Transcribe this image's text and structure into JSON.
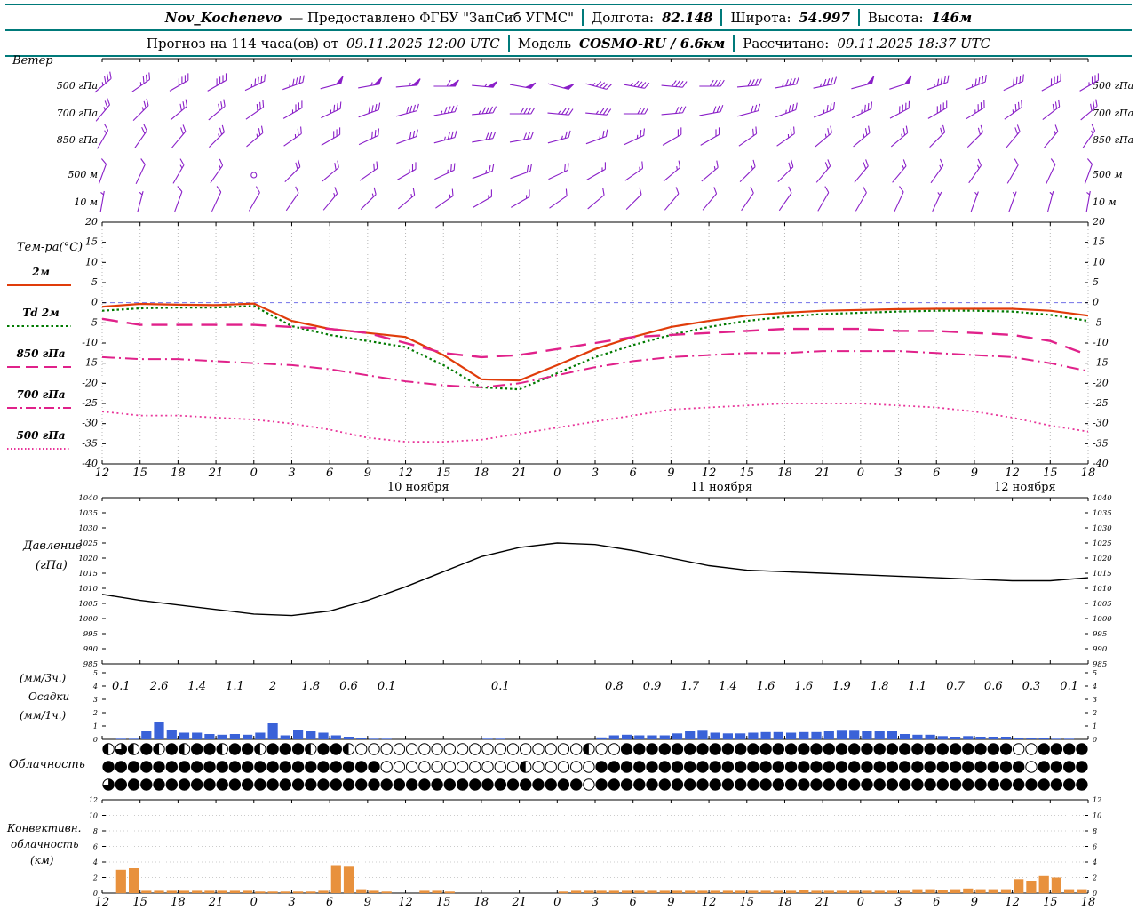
{
  "colors": {
    "accent": "#007a7a",
    "wind_barbs": "#8a1fc8",
    "pressure_line": "#000000",
    "precip_bars": "#3a62d8",
    "convective_bars": "#e8913d",
    "temp_2m": "#e03c0a",
    "td_2m": "#007a00",
    "temp_850": "#e0218a",
    "temp_700": "#e0218a",
    "temp_500": "#e8359a"
  },
  "header": {
    "row1": {
      "station": "Nov_Kochenevo",
      "provider": "— Предоставлено ФГБУ \"ЗапСиб УГМС\"",
      "lon_label": "Долгота:",
      "lon_value": "82.148",
      "lat_label": "Широта:",
      "lat_value": "54.997",
      "alt_label": "Высота:",
      "alt_value": "146м"
    },
    "row2": {
      "forecast_label": "Прогноз на 114 часа(ов) от",
      "forecast_time": "09.11.2025 12:00 UTC",
      "model_label": "Модель",
      "model_value": "COSMO-RU / 6.6км",
      "calc_label": "Рассчитано:",
      "calc_value": "09.11.2025 18:37 UTC"
    }
  },
  "panels": {
    "wind": {
      "title": "Ветер",
      "levels": [
        "500 гПа",
        "700 гПа",
        "850 гПа",
        "500 м",
        "10 м"
      ]
    },
    "temperature": {
      "title": "Тем-ра(°C)",
      "legend": [
        {
          "label": "2м"
        },
        {
          "label": "Td 2м"
        },
        {
          "label": "850 гПа"
        },
        {
          "label": "700 гПа"
        },
        {
          "label": "500 гПа"
        }
      ]
    },
    "pressure": {
      "line1": "Давление",
      "line2": "(гПа)"
    },
    "precip": {
      "line1": "(мм/3ч.)",
      "line2": "Осадки",
      "line3": "(мм/1ч.)"
    },
    "cloud": {
      "title": "Облачность"
    },
    "convective": {
      "line1": "Конвективн.",
      "line2": "облачность",
      "line3": "(км)"
    }
  },
  "time_axis": {
    "hours_span": 78,
    "step": 3,
    "tick_labels": [
      "12",
      "15",
      "18",
      "21",
      "0",
      "3",
      "6",
      "9",
      "12",
      "15",
      "18",
      "21",
      "0",
      "3",
      "6",
      "9",
      "12",
      "15",
      "18",
      "21",
      "0",
      "3",
      "6",
      "9",
      "12",
      "15",
      "18"
    ],
    "dates": [
      {
        "label": "10 ноября",
        "center_hour": 25
      },
      {
        "label": "11 ноября",
        "center_hour": 49
      },
      {
        "label": "12 ноября",
        "center_hour": 73
      }
    ]
  },
  "chart_data": [
    {
      "id": "wind",
      "type": "scatter",
      "subtype": "wind-barbs",
      "title": "Ветер",
      "units": "kt",
      "levels": [
        {
          "label": "500 гПа",
          "dirs": [
            50,
            55,
            60,
            60,
            65,
            70,
            75,
            80,
            85,
            90,
            95,
            100,
            105,
            105,
            100,
            95,
            90,
            85,
            80,
            78,
            75,
            72,
            70,
            68,
            65,
            62,
            60
          ],
          "speeds_kt": [
            35,
            35,
            40,
            40,
            45,
            45,
            50,
            55,
            55,
            60,
            55,
            50,
            50,
            45,
            45,
            40,
            40,
            40,
            45,
            45,
            50,
            50,
            45,
            45,
            40,
            40,
            35
          ]
        },
        {
          "label": "700 гПа",
          "dirs": [
            40,
            45,
            50,
            50,
            55,
            60,
            65,
            70,
            75,
            80,
            85,
            90,
            95,
            95,
            90,
            85,
            80,
            75,
            70,
            68,
            65,
            62,
            60,
            58,
            55,
            52,
            50
          ],
          "speeds_kt": [
            25,
            25,
            30,
            30,
            30,
            35,
            35,
            40,
            40,
            45,
            45,
            40,
            35,
            35,
            30,
            30,
            30,
            30,
            35,
            35,
            35,
            40,
            40,
            35,
            35,
            30,
            30
          ]
        },
        {
          "label": "850 гПа",
          "dirs": [
            30,
            35,
            40,
            45,
            50,
            55,
            60,
            65,
            70,
            75,
            80,
            80,
            75,
            70,
            65,
            60,
            60,
            55,
            55,
            50,
            50,
            50,
            45,
            45,
            40,
            40,
            35
          ],
          "speeds_kt": [
            15,
            20,
            20,
            25,
            25,
            25,
            30,
            30,
            30,
            35,
            30,
            30,
            25,
            25,
            25,
            20,
            20,
            20,
            25,
            25,
            25,
            25,
            20,
            20,
            20,
            15,
            15
          ]
        },
        {
          "label": "500 м",
          "dirs": [
            20,
            25,
            30,
            35,
            40,
            45,
            50,
            55,
            60,
            65,
            70,
            70,
            65,
            60,
            55,
            50,
            50,
            45,
            45,
            40,
            40,
            40,
            35,
            35,
            30,
            25,
            20
          ],
          "speeds_kt": [
            10,
            10,
            15,
            15,
            0,
            20,
            20,
            20,
            25,
            25,
            25,
            20,
            20,
            15,
            15,
            15,
            15,
            15,
            20,
            20,
            20,
            15,
            15,
            15,
            10,
            10,
            10
          ]
        },
        {
          "label": "10 м",
          "dirs": [
            10,
            15,
            20,
            25,
            30,
            35,
            40,
            45,
            50,
            55,
            60,
            60,
            55,
            50,
            45,
            40,
            40,
            35,
            35,
            30,
            30,
            25,
            25,
            20,
            20,
            15,
            10
          ],
          "speeds_kt": [
            5,
            5,
            10,
            10,
            10,
            10,
            15,
            15,
            15,
            15,
            15,
            15,
            10,
            10,
            10,
            10,
            10,
            10,
            10,
            10,
            10,
            10,
            5,
            5,
            5,
            5,
            5
          ]
        }
      ]
    },
    {
      "id": "temperature",
      "type": "line",
      "title": "Тем-ра(°C)",
      "ylim": [
        -40,
        20
      ],
      "yticks": [
        20,
        15,
        10,
        5,
        0,
        -5,
        -10,
        -15,
        -20,
        -25,
        -30,
        -35,
        -40
      ],
      "series": [
        {
          "key": "t2m",
          "name": "2м",
          "style": "solid",
          "width": 2.2,
          "color": "#e03c0a",
          "values": [
            -1,
            -0.3,
            -0.5,
            -0.6,
            -0.2,
            -4.5,
            -6.5,
            -7.5,
            -8.5,
            -13,
            -19,
            -19.3,
            -15.5,
            -11.5,
            -8.5,
            -6,
            -4.5,
            -3.2,
            -2.5,
            -2,
            -1.8,
            -1.6,
            -1.5,
            -1.5,
            -1.5,
            -2,
            -3.2
          ]
        },
        {
          "key": "td2m",
          "name": "Td 2м",
          "style": "dotted",
          "width": 2.2,
          "color": "#007a00",
          "values": [
            -2,
            -1.4,
            -1.2,
            -1.2,
            -0.8,
            -5.8,
            -8,
            -9.5,
            -11,
            -15.5,
            -21,
            -21.5,
            -17.5,
            -13.5,
            -10.5,
            -8,
            -6,
            -4.5,
            -3.5,
            -2.8,
            -2.5,
            -2.2,
            -2,
            -2,
            -2.2,
            -3,
            -4.5
          ]
        },
        {
          "key": "t850",
          "name": "850 гПа",
          "style": "longdash",
          "width": 2.4,
          "color": "#e0218a",
          "values": [
            -4,
            -5.5,
            -5.5,
            -5.5,
            -5.5,
            -6,
            -6.5,
            -7.5,
            -10,
            -12.5,
            -13.5,
            -13,
            -11.5,
            -10,
            -8.5,
            -8,
            -7.5,
            -7,
            -6.5,
            -6.5,
            -6.5,
            -7,
            -7,
            -7.5,
            -8,
            -9.5,
            -13
          ]
        },
        {
          "key": "t700",
          "name": "700 гПа",
          "style": "dashdot",
          "width": 2,
          "color": "#e0218a",
          "values": [
            -13.5,
            -14,
            -14,
            -14.5,
            -15,
            -15.5,
            -16.5,
            -18,
            -19.5,
            -20.5,
            -21,
            -20,
            -18,
            -16,
            -14.5,
            -13.5,
            -13,
            -12.5,
            -12.5,
            -12,
            -12,
            -12,
            -12.5,
            -13,
            -13.5,
            -15,
            -17
          ]
        },
        {
          "key": "t500",
          "name": "500 гПа",
          "style": "densedot",
          "width": 1.8,
          "color": "#e8359a",
          "values": [
            -27,
            -28,
            -28,
            -28.5,
            -29,
            -30,
            -31.5,
            -33.5,
            -34.5,
            -34.5,
            -34,
            -32.5,
            -31,
            -29.5,
            -28,
            -26.5,
            -26,
            -25.5,
            -25,
            -25,
            -25,
            -25.5,
            -26,
            -27,
            -28.5,
            -30.5,
            -32
          ]
        }
      ]
    },
    {
      "id": "pressure",
      "type": "line",
      "title": "Давление (гПа)",
      "ylim": [
        985,
        1040
      ],
      "yticks": [
        1040,
        1035,
        1030,
        1025,
        1020,
        1015,
        1010,
        1005,
        1000,
        995,
        990,
        985
      ],
      "values": [
        1008,
        1006,
        1004.5,
        1003,
        1001.5,
        1001,
        1002.5,
        1006,
        1010.5,
        1015.5,
        1020.5,
        1023.5,
        1025,
        1024.5,
        1022.5,
        1020,
        1017.5,
        1016,
        1015.5,
        1015,
        1014.5,
        1014,
        1013.5,
        1013,
        1012.5,
        1012.5,
        1013.5
      ]
    },
    {
      "id": "precipitation",
      "type": "bar",
      "title": "Осадки",
      "ylim": [
        0,
        5
      ],
      "yticks": [
        5,
        4,
        3,
        2,
        1,
        0
      ],
      "amounts_3h": [
        "0.1",
        "2.6",
        "1.4",
        "1.1",
        "2",
        "1.8",
        "0.6",
        "0.1",
        null,
        null,
        "0.1",
        null,
        null,
        "0.8",
        "0.9",
        "1.7",
        "1.4",
        "1.6",
        "1.6",
        "1.9",
        "1.8",
        "1.1",
        "0.7",
        "0.6",
        "0.3",
        "0.1"
      ],
      "hourly_1h": [
        0,
        0.05,
        0.05,
        0.6,
        1.3,
        0.7,
        0.5,
        0.5,
        0.4,
        0.35,
        0.4,
        0.35,
        0.5,
        1.2,
        0.3,
        0.7,
        0.6,
        0.5,
        0.3,
        0.2,
        0.1,
        0.05,
        0.05,
        0,
        0,
        0,
        0,
        0,
        0,
        0,
        0.05,
        0.05,
        0,
        0,
        0,
        0,
        0,
        0,
        0,
        0.15,
        0.3,
        0.35,
        0.3,
        0.3,
        0.3,
        0.45,
        0.6,
        0.65,
        0.5,
        0.45,
        0.45,
        0.5,
        0.55,
        0.55,
        0.5,
        0.55,
        0.55,
        0.6,
        0.65,
        0.65,
        0.6,
        0.6,
        0.6,
        0.4,
        0.35,
        0.35,
        0.25,
        0.2,
        0.25,
        0.2,
        0.2,
        0.2,
        0.1,
        0.1,
        0.1,
        0.05,
        0.05,
        0
      ]
    },
    {
      "id": "cloud",
      "type": "heatmap",
      "subtype": "cloud-cover",
      "title": "Облачность",
      "rows": [
        [
          0.5,
          0.75,
          0.5,
          1,
          0.5,
          1,
          0.5,
          1,
          1,
          0.5,
          1,
          1,
          0.5,
          1,
          1,
          1,
          0.5,
          1,
          1,
          0.5,
          0,
          0,
          0,
          0,
          0,
          0,
          0,
          0,
          0,
          0,
          0,
          0,
          0,
          0,
          0,
          0,
          0,
          0,
          0.5,
          0,
          0,
          1,
          1,
          1,
          1,
          1,
          1,
          1,
          1,
          1,
          1,
          1,
          1,
          1,
          1,
          1,
          1,
          1,
          1,
          1,
          1,
          1,
          1,
          1,
          1,
          1,
          1,
          1,
          1,
          1,
          1,
          1,
          0,
          0,
          1,
          1,
          1,
          1
        ],
        [
          1,
          1,
          1,
          1,
          1,
          1,
          1,
          1,
          1,
          1,
          1,
          1,
          1,
          1,
          1,
          1,
          1,
          1,
          1,
          1,
          1,
          1,
          0,
          0,
          0,
          0,
          0,
          0,
          0,
          0,
          0,
          0,
          0,
          0.5,
          0,
          0,
          0,
          0,
          0,
          1,
          1,
          1,
          1,
          1,
          1,
          1,
          1,
          1,
          1,
          1,
          1,
          1,
          1,
          1,
          1,
          1,
          1,
          1,
          1,
          1,
          1,
          1,
          1,
          1,
          1,
          1,
          1,
          1,
          1,
          1,
          1,
          1,
          1,
          0,
          1,
          1,
          1,
          1
        ],
        [
          0.75,
          1,
          1,
          1,
          1,
          1,
          1,
          1,
          1,
          1,
          1,
          1,
          1,
          1,
          1,
          1,
          1,
          1,
          1,
          1,
          1,
          1,
          1,
          1,
          1,
          1,
          1,
          1,
          1,
          1,
          1,
          1,
          1,
          1,
          1,
          1,
          1,
          1,
          0,
          1,
          1,
          1,
          1,
          1,
          1,
          1,
          1,
          1,
          1,
          1,
          1,
          1,
          1,
          1,
          1,
          1,
          1,
          1,
          1,
          1,
          1,
          1,
          1,
          1,
          1,
          1,
          1,
          1,
          1,
          1,
          1,
          1,
          1,
          1,
          1,
          1,
          1,
          1
        ]
      ]
    },
    {
      "id": "convective",
      "type": "bar",
      "title": "Конвективная облачность (км)",
      "ylim": [
        0,
        12
      ],
      "yticks": [
        12,
        10,
        8,
        6,
        4,
        2,
        0
      ],
      "hourly_km": [
        0,
        3,
        3.2,
        0.3,
        0.3,
        0.3,
        0.3,
        0.3,
        0.3,
        0.3,
        0.3,
        0.3,
        0.2,
        0.2,
        0.2,
        0.2,
        0.2,
        0.3,
        3.6,
        3.4,
        0.5,
        0.3,
        0.2,
        0,
        0,
        0.3,
        0.3,
        0.2,
        0,
        0,
        0,
        0,
        0,
        0,
        0,
        0,
        0.2,
        0.3,
        0.3,
        0.3,
        0.3,
        0.3,
        0.3,
        0.3,
        0.3,
        0.3,
        0.3,
        0.3,
        0.3,
        0.3,
        0.3,
        0.3,
        0.3,
        0.3,
        0.3,
        0.4,
        0.3,
        0.3,
        0.3,
        0.3,
        0.3,
        0.3,
        0.3,
        0.3,
        0.5,
        0.5,
        0.4,
        0.5,
        0.6,
        0.5,
        0.5,
        0.5,
        1.8,
        1.6,
        2.2,
        2,
        0.5,
        0.5
      ]
    }
  ]
}
